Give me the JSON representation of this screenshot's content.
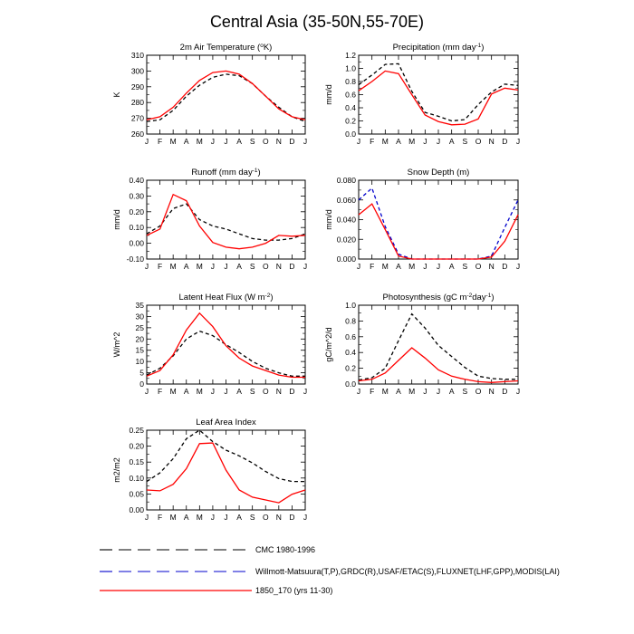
{
  "figure": {
    "title": "Central Asia (35-50N,55-70E)"
  },
  "legend": {
    "items": [
      {
        "label": "CMC 1980-1996",
        "color": "#000000",
        "dash": "dashed"
      },
      {
        "label": "Willmott-Matsuura(T,P),GRDC(R),USAF/ETAC(S),FLUXNET(LHF,GPP),MODIS(LAI)",
        "color": "#0000cc",
        "dash": "dashed"
      },
      {
        "label": "1850_170 (yrs 11-30)",
        "color": "#ff0000",
        "dash": "solid"
      }
    ]
  },
  "chart_data": [
    {
      "type": "line",
      "title_parts": [
        "2m Air Temperature (",
        "o",
        "K)"
      ],
      "ylabel": "K",
      "categories": [
        "J",
        "F",
        "M",
        "A",
        "M",
        "J",
        "J",
        "A",
        "S",
        "O",
        "N",
        "D",
        "J"
      ],
      "ylim": [
        260,
        310
      ],
      "yticks": [
        "260",
        "270",
        "280",
        "290",
        "300",
        "310"
      ],
      "series": [
        {
          "style": "black",
          "values": [
            268,
            269,
            275,
            284,
            291,
            296,
            298,
            297,
            292,
            284,
            277,
            271,
            268
          ]
        },
        {
          "style": "red",
          "values": [
            269,
            271,
            277,
            286,
            294,
            299,
            300,
            298,
            292,
            284,
            276,
            271,
            269
          ]
        }
      ]
    },
    {
      "type": "line",
      "title_parts": [
        "Precipitation (mm day",
        "-1",
        ")"
      ],
      "ylabel": "mm/d",
      "categories": [
        "J",
        "F",
        "M",
        "A",
        "M",
        "J",
        "J",
        "A",
        "S",
        "O",
        "N",
        "D",
        "J"
      ],
      "ylim": [
        0,
        1.2
      ],
      "yticks": [
        "0.0",
        "0.2",
        "0.4",
        "0.6",
        "0.8",
        "1.0",
        "1.2"
      ],
      "series": [
        {
          "style": "black",
          "values": [
            0.75,
            0.9,
            1.06,
            1.07,
            0.65,
            0.33,
            0.27,
            0.2,
            0.22,
            0.45,
            0.64,
            0.76,
            0.74
          ]
        },
        {
          "style": "red",
          "values": [
            0.66,
            0.8,
            0.96,
            0.92,
            0.6,
            0.29,
            0.19,
            0.14,
            0.15,
            0.23,
            0.61,
            0.7,
            0.67
          ]
        }
      ]
    },
    {
      "type": "line",
      "title_parts": [
        "Runoff (mm day",
        "-1",
        ")"
      ],
      "ylabel": "mm/d",
      "categories": [
        "J",
        "F",
        "M",
        "A",
        "M",
        "J",
        "J",
        "A",
        "S",
        "O",
        "N",
        "D",
        "J"
      ],
      "ylim": [
        -0.1,
        0.4
      ],
      "yticks": [
        "-0.10",
        "0.00",
        "0.10",
        "0.20",
        "0.30",
        "0.40"
      ],
      "series": [
        {
          "style": "black",
          "values": [
            0.06,
            0.11,
            0.22,
            0.25,
            0.15,
            0.11,
            0.09,
            0.06,
            0.03,
            0.02,
            0.02,
            0.03,
            0.06
          ]
        },
        {
          "style": "red",
          "values": [
            0.05,
            0.09,
            0.31,
            0.27,
            0.11,
            0.005,
            -0.025,
            -0.035,
            -0.025,
            0.0,
            0.05,
            0.045,
            0.05
          ]
        }
      ]
    },
    {
      "type": "line",
      "title_parts": [
        "Snow Depth (m)"
      ],
      "ylabel": "mm/d",
      "categories": [
        "J",
        "F",
        "M",
        "A",
        "M",
        "J",
        "J",
        "A",
        "S",
        "O",
        "N",
        "D",
        "J"
      ],
      "ylim": [
        0,
        0.08
      ],
      "yticks": [
        "0.000",
        "0.020",
        "0.040",
        "0.060",
        "0.080"
      ],
      "series": [
        {
          "style": "blue",
          "values": [
            0.06,
            0.072,
            0.033,
            0.005,
            0.0,
            0.0,
            0.0,
            0.0,
            0.0,
            0.0,
            0.003,
            0.032,
            0.06
          ]
        },
        {
          "style": "red",
          "values": [
            0.045,
            0.056,
            0.03,
            0.003,
            0.0,
            0.0,
            0.0,
            0.0,
            0.0,
            0.0,
            0.002,
            0.018,
            0.045
          ]
        }
      ]
    },
    {
      "type": "line",
      "title_parts": [
        "Latent Heat Flux (W m",
        "-2",
        ")"
      ],
      "ylabel": "W/m^2",
      "categories": [
        "J",
        "F",
        "M",
        "A",
        "M",
        "J",
        "J",
        "A",
        "S",
        "O",
        "N",
        "D",
        "J"
      ],
      "ylim": [
        0,
        35
      ],
      "yticks": [
        "0",
        "5",
        "10",
        "15",
        "20",
        "25",
        "30",
        "35"
      ],
      "series": [
        {
          "style": "black",
          "values": [
            4,
            7,
            12.5,
            20,
            23.5,
            21.5,
            17.5,
            14,
            10,
            7,
            5,
            3.5,
            3.5
          ]
        },
        {
          "style": "red",
          "values": [
            3.5,
            6,
            13,
            24,
            31.5,
            25.5,
            17,
            11.5,
            8,
            6,
            4,
            3,
            3
          ]
        }
      ]
    },
    {
      "type": "line",
      "title_parts": [
        "Photosynthesis (gC m",
        "-2",
        "day",
        "-1",
        ")"
      ],
      "ylabel": "gC/m^2/d",
      "categories": [
        "J",
        "F",
        "M",
        "A",
        "M",
        "J",
        "J",
        "A",
        "S",
        "O",
        "N",
        "D",
        "J"
      ],
      "ylim": [
        0,
        1.0
      ],
      "yticks": [
        "0.0",
        "0.2",
        "0.4",
        "0.6",
        "0.8",
        "1.0"
      ],
      "series": [
        {
          "style": "black",
          "values": [
            0.05,
            0.08,
            0.2,
            0.55,
            0.89,
            0.71,
            0.49,
            0.35,
            0.21,
            0.1,
            0.07,
            0.06,
            0.06
          ]
        },
        {
          "style": "red",
          "values": [
            0.04,
            0.06,
            0.14,
            0.3,
            0.46,
            0.33,
            0.18,
            0.1,
            0.06,
            0.03,
            0.02,
            0.03,
            0.04
          ]
        }
      ]
    },
    {
      "type": "line",
      "title_parts": [
        "Leaf Area Index"
      ],
      "ylabel": "m2/m2",
      "categories": [
        "J",
        "F",
        "M",
        "A",
        "M",
        "J",
        "J",
        "A",
        "S",
        "O",
        "N",
        "D",
        "J"
      ],
      "ylim": [
        0,
        0.28
      ],
      "yticks": [
        "0.00",
        "0.05",
        "0.10",
        "0.15",
        "0.20",
        "0.25"
      ],
      "series": [
        {
          "style": "black",
          "values": [
            0.1,
            0.13,
            0.18,
            0.25,
            0.28,
            0.24,
            0.21,
            0.19,
            0.165,
            0.135,
            0.11,
            0.1,
            0.1
          ]
        },
        {
          "style": "red",
          "values": [
            0.07,
            0.067,
            0.09,
            0.145,
            0.233,
            0.235,
            0.14,
            0.07,
            0.045,
            0.035,
            0.025,
            0.055,
            0.07
          ]
        }
      ]
    }
  ]
}
